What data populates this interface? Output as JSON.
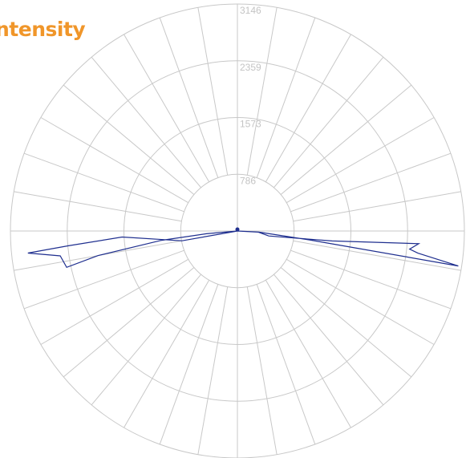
{
  "colors": {
    "title": "#f0962a",
    "grid": "#c8c8c8",
    "tick_label": "#c4c4c4",
    "curve": "#1f2f8f",
    "background": "#ffffff"
  },
  "chart_data": {
    "type": "polar-line",
    "title": "ntensity",
    "radial_ticks": [
      786,
      1573,
      2359,
      3146
    ],
    "radial_range": [
      0,
      3146
    ],
    "angular_step_deg": 10,
    "grid": true,
    "series": [
      {
        "points": [
          {
            "angle": 0,
            "r": 0
          },
          {
            "angle": 93,
            "r": 290
          },
          {
            "angle": 99,
            "r": 440
          },
          {
            "angle": 96,
            "r": 1320
          },
          {
            "angle": 94,
            "r": 2520
          },
          {
            "angle": 96,
            "r": 2400
          },
          {
            "angle": 97,
            "r": 2520
          },
          {
            "angle": 99,
            "r": 3100
          },
          {
            "angle": 97,
            "r": 1000
          },
          {
            "angle": 93,
            "r": 300
          },
          {
            "angle": 0,
            "r": 0
          },
          {
            "angle": 265,
            "r": 430
          },
          {
            "angle": 263,
            "r": 1060
          },
          {
            "angle": 260,
            "r": 1960
          },
          {
            "angle": 258,
            "r": 2420
          },
          {
            "angle": 262,
            "r": 2480
          },
          {
            "angle": 264,
            "r": 2920
          },
          {
            "angle": 265,
            "r": 2350
          },
          {
            "angle": 267,
            "r": 1600
          },
          {
            "angle": 260,
            "r": 780
          },
          {
            "angle": 0,
            "r": 0
          }
        ]
      }
    ]
  }
}
